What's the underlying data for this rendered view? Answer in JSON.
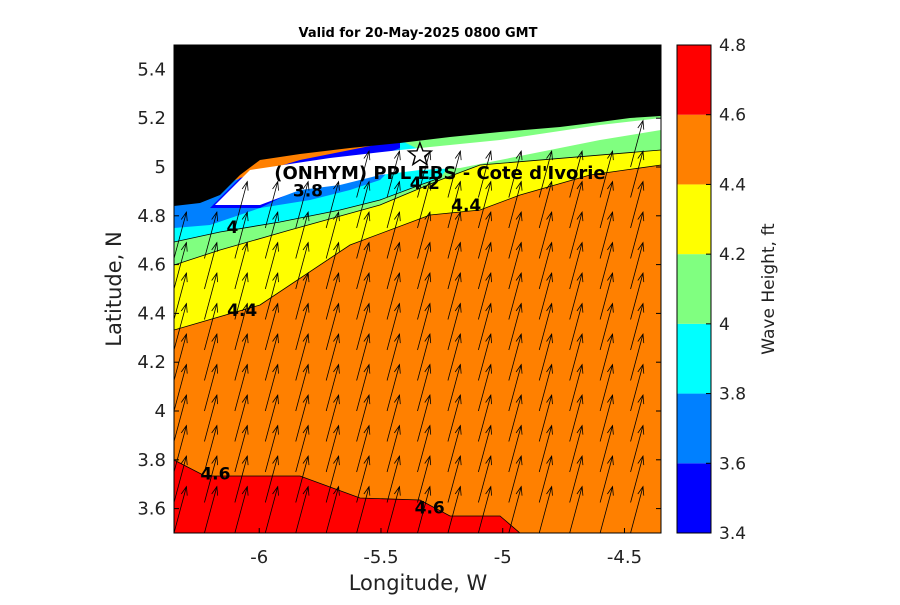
{
  "chart_data": {
    "type": "heatmap",
    "title": "Valid for 20-May-2025 0800 GMT",
    "xlabel": "Longitude, W",
    "ylabel": "Latitude, N",
    "xlim": [
      -6.35,
      -4.35
    ],
    "ylim": [
      3.5,
      5.5
    ],
    "x_ticks": [
      -6,
      -5.5,
      -5,
      -4.5
    ],
    "x_tick_labels": [
      "-6",
      "-5.5",
      "-5",
      "-4.5"
    ],
    "y_ticks": [
      3.6,
      3.8,
      4,
      4.2,
      4.4,
      4.6,
      4.8,
      5,
      5.2,
      5.4
    ],
    "y_tick_labels": [
      "3.6",
      "3.8",
      "4",
      "4.2",
      "4.4",
      "4.6",
      "4.8",
      "5",
      "5.2",
      "5.4"
    ],
    "colorbar": {
      "label": "Wave Height, ft",
      "levels": [
        3.4,
        3.6,
        3.8,
        4.0,
        4.2,
        4.4,
        4.6,
        4.8
      ],
      "tick_labels": [
        "3.4",
        "3.6",
        "3.8",
        "4",
        "4.2",
        "4.4",
        "4.6",
        "4.8"
      ],
      "colors": [
        "#0000ff",
        "#0080ff",
        "#00ffff",
        "#80ff80",
        "#ffff00",
        "#ff8000",
        "#ff0000"
      ]
    },
    "contour_labels": [
      {
        "text": "3.8",
        "lon": -5.8,
        "lat": 4.88
      },
      {
        "text": "4.2",
        "lon": -5.32,
        "lat": 4.91
      },
      {
        "text": "4.4",
        "lon": -5.15,
        "lat": 4.82
      },
      {
        "text": "4",
        "lon": -6.11,
        "lat": 4.73
      },
      {
        "text": "4.4",
        "lon": -6.07,
        "lat": 4.39
      },
      {
        "text": "4.6",
        "lon": -6.18,
        "lat": 3.72
      },
      {
        "text": "4.6",
        "lon": -5.3,
        "lat": 3.58
      }
    ],
    "site": {
      "label": "(ONHYM) PPL EBS  - Cote d'Ivorie",
      "lon": -5.34,
      "lat": 5.05,
      "marker": "star"
    },
    "wave_direction_arrows": {
      "direction": "toward NNE",
      "spacing_deg": 0.125
    },
    "land_color": "#000000"
  }
}
